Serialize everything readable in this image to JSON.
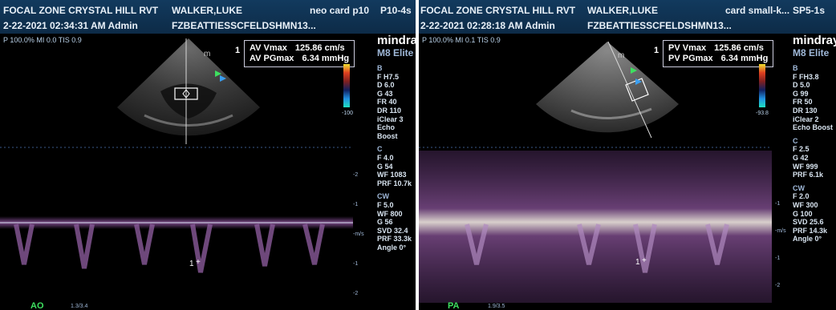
{
  "left": {
    "facility": "FOCAL ZONE CRYSTAL HILL RVT",
    "patient": "WALKER,LUKE",
    "exam": "neo card p10",
    "probe": "P10-4s",
    "datetime": "2-22-2021 02:34:31 AM Admin",
    "operator": "FZBEATTIESSCFELDSHMN13...",
    "power_line": "P 100.0% MI 0.0 TIS 0.9",
    "brand": "mindray",
    "model": "M8 Elite",
    "meas_index": "1",
    "meas1_label": "AV Vmax",
    "meas1_value": "125.86 cm/s",
    "meas2_label": "AV PGmax",
    "meas2_value": "6.34 mmHg",
    "scale_min": "-100",
    "b_params": [
      "B",
      "F H7.5",
      "D 6.0",
      "G 43",
      "FR 40",
      "DR 110",
      "iClear 3",
      "Echo Boost"
    ],
    "c_params": [
      "C",
      "F 4.0",
      "G 54",
      "WF 1083",
      "PRF 10.7k"
    ],
    "cw_params": [
      "CW",
      "F 5.0",
      "WF 800",
      "G 56",
      "SVD 32.4",
      "PRF 33.3k",
      "Angle 0°"
    ],
    "ticks": [
      "-2",
      "-1",
      "-m/s",
      "-1",
      "-2"
    ],
    "cursor_label": "1",
    "view_tag": "AO",
    "footer": "1.3/3.4"
  },
  "right": {
    "facility": "FOCAL ZONE CRYSTAL HILL RVT",
    "patient": "WALKER,LUKE",
    "exam": "card small-k...",
    "probe": "SP5-1s",
    "datetime": "2-22-2021 02:28:18 AM Admin",
    "operator": "FZBEATTIESSCFELDSHMN13...",
    "power_line": "P 100.0% MI 0.1 TIS 0.9",
    "brand": "mindray",
    "model": "M8 Elite",
    "meas_index": "1",
    "meas1_label": "PV Vmax",
    "meas1_value": "125.86 cm/s",
    "meas2_label": "PV PGmax",
    "meas2_value": "6.34 mmHg",
    "scale_min": "-93.8",
    "b_params": [
      "B",
      "F FH3.8",
      "D 5.0",
      "G 99",
      "FR 50",
      "DR 130",
      "iClear 2",
      "Echo Boost"
    ],
    "c_params": [
      "C",
      "F 2.5",
      "G 42",
      "WF 999",
      "PRF 6.1k"
    ],
    "cw_params": [
      "CW",
      "F 2.0",
      "WF 300",
      "G 100",
      "SVD 25.6",
      "PRF 14.3k",
      "Angle 0°"
    ],
    "ticks": [
      "-1",
      "-m/s",
      "-1",
      "-2"
    ],
    "cursor_label": "1",
    "view_tag": "PA",
    "footer": "1.9/3.5"
  },
  "colors": {
    "header_bg": "#123a5e",
    "tag_green": "#3ee060",
    "doppler_glow": "#f4d8e0",
    "doppler_purple": "#6a3a78"
  }
}
